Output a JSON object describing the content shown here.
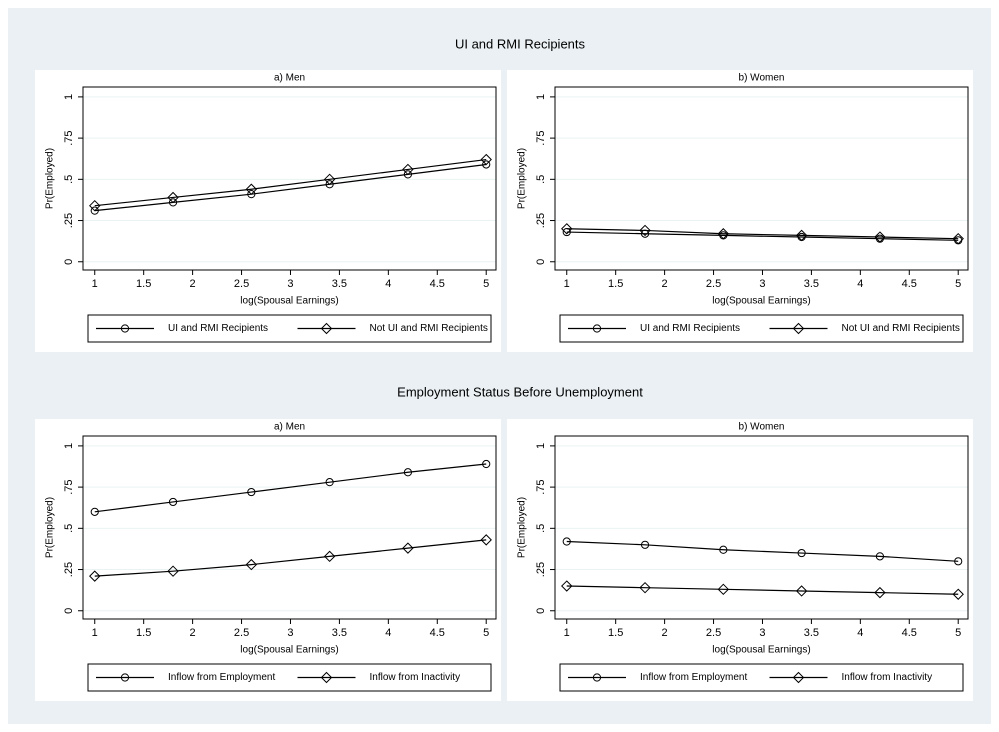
{
  "figure": {
    "sections": [
      {
        "title": "UI and RMI Recipients"
      },
      {
        "title": "Employment Status Before Unemployment"
      }
    ]
  },
  "chart_data": [
    {
      "type": "line",
      "title": "a) Men",
      "xlabel": "log(Spousal Earnings)",
      "ylabel": "Pr(Employed)",
      "x": [
        1,
        1.8,
        2.6,
        3.4,
        4.2,
        5
      ],
      "series": [
        {
          "name": "UI and RMI Recipients",
          "color": "#000000",
          "marker": "circle",
          "values": [
            0.31,
            0.36,
            0.41,
            0.47,
            0.53,
            0.59
          ]
        },
        {
          "name": "Not UI and RMI Recipients",
          "color": "#000000",
          "marker": "diamond",
          "values": [
            0.34,
            0.39,
            0.44,
            0.5,
            0.56,
            0.62
          ]
        }
      ],
      "xlim": [
        0.88,
        5.1
      ],
      "xticks": [
        1,
        1.5,
        2,
        2.5,
        3,
        3.5,
        4,
        4.5,
        5
      ],
      "ylim": [
        -0.05,
        1.06
      ],
      "yticks": [
        0,
        {
          "value": 0.25,
          "label": ".25"
        },
        {
          "value": 0.5,
          "label": ".5"
        },
        {
          "value": 0.75,
          "label": ".75"
        },
        1
      ],
      "grid": true,
      "legend": "bottom"
    },
    {
      "type": "line",
      "title": "b) Women",
      "xlabel": "log(Spousal Earnings)",
      "ylabel": "Pr(Employed)",
      "x": [
        1,
        1.8,
        2.6,
        3.4,
        4.2,
        5
      ],
      "series": [
        {
          "name": "UI and RMI Recipients",
          "color": "#000000",
          "marker": "circle",
          "values": [
            0.18,
            0.17,
            0.16,
            0.15,
            0.14,
            0.13
          ]
        },
        {
          "name": "Not UI and RMI Recipients",
          "color": "#000000",
          "marker": "diamond",
          "values": [
            0.2,
            0.19,
            0.17,
            0.16,
            0.15,
            0.14
          ]
        }
      ],
      "xlim": [
        0.88,
        5.1
      ],
      "xticks": [
        1,
        1.5,
        2,
        2.5,
        3,
        3.5,
        4,
        4.5,
        5
      ],
      "ylim": [
        -0.05,
        1.06
      ],
      "yticks": [
        0,
        {
          "value": 0.25,
          "label": ".25"
        },
        {
          "value": 0.5,
          "label": ".5"
        },
        {
          "value": 0.75,
          "label": ".75"
        },
        1
      ],
      "grid": true,
      "legend": "bottom"
    },
    {
      "type": "line",
      "title": "a) Men",
      "xlabel": "log(Spousal Earnings)",
      "ylabel": "Pr(Employed)",
      "x": [
        1,
        1.8,
        2.6,
        3.4,
        4.2,
        5
      ],
      "series": [
        {
          "name": "Inflow from Employment",
          "color": "#000000",
          "marker": "circle",
          "values": [
            0.6,
            0.66,
            0.72,
            0.78,
            0.84,
            0.89
          ]
        },
        {
          "name": "Inflow from Inactivity",
          "color": "#000000",
          "marker": "diamond",
          "values": [
            0.21,
            0.24,
            0.28,
            0.33,
            0.38,
            0.43
          ]
        }
      ],
      "xlim": [
        0.88,
        5.1
      ],
      "xticks": [
        1,
        1.5,
        2,
        2.5,
        3,
        3.5,
        4,
        4.5,
        5
      ],
      "ylim": [
        -0.05,
        1.06
      ],
      "yticks": [
        0,
        {
          "value": 0.25,
          "label": ".25"
        },
        {
          "value": 0.5,
          "label": ".5"
        },
        {
          "value": 0.75,
          "label": ".75"
        },
        1
      ],
      "grid": true,
      "legend": "bottom"
    },
    {
      "type": "line",
      "title": "b) Women",
      "xlabel": "log(Spousal Earnings)",
      "ylabel": "Pr(Employed)",
      "x": [
        1,
        1.8,
        2.6,
        3.4,
        4.2,
        5
      ],
      "series": [
        {
          "name": "Inflow from Employment",
          "color": "#000000",
          "marker": "circle",
          "values": [
            0.42,
            0.4,
            0.37,
            0.35,
            0.33,
            0.3
          ]
        },
        {
          "name": "Inflow from Inactivity",
          "color": "#000000",
          "marker": "diamond",
          "values": [
            0.15,
            0.14,
            0.13,
            0.12,
            0.11,
            0.1
          ]
        }
      ],
      "xlim": [
        0.88,
        5.1
      ],
      "xticks": [
        1,
        1.5,
        2,
        2.5,
        3,
        3.5,
        4,
        4.5,
        5
      ],
      "ylim": [
        -0.05,
        1.06
      ],
      "yticks": [
        0,
        {
          "value": 0.25,
          "label": ".25"
        },
        {
          "value": 0.5,
          "label": ".5"
        },
        {
          "value": 0.75,
          "label": ".75"
        },
        1
      ],
      "grid": true,
      "legend": "bottom"
    }
  ]
}
